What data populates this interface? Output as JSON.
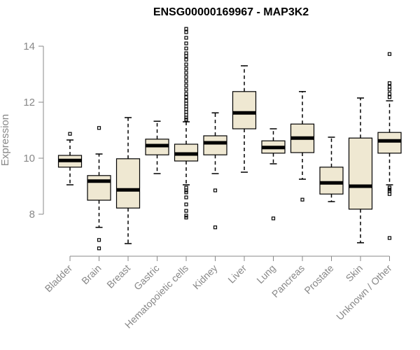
{
  "chart_data": {
    "type": "boxplot",
    "title": "ENSG00000169967 - MAP3K2",
    "xlabel": "",
    "ylabel": "Expression",
    "ylim": [
      6.5,
      14.6
    ],
    "yticks": [
      8,
      10,
      12,
      14
    ],
    "grid": false,
    "colors": {
      "box_fill": "#efe8d2",
      "axis": "#888888",
      "stroke": "#000000"
    },
    "categories": [
      "Bladder",
      "Brain",
      "Breast",
      "Gastric",
      "Hematopoietic cells",
      "Kidney",
      "Liver",
      "Lung",
      "Pancreas",
      "Prostate",
      "Skin",
      "Unknown / Other"
    ],
    "series": [
      {
        "name": "Bladder",
        "min": 9.05,
        "q1": 9.68,
        "median": 9.92,
        "q3": 10.1,
        "max": 10.65,
        "outliers": [
          10.87
        ]
      },
      {
        "name": "Brain",
        "min": 7.53,
        "q1": 8.5,
        "median": 9.18,
        "q3": 9.38,
        "max": 10.15,
        "outliers": [
          11.08,
          7.08,
          6.78
        ]
      },
      {
        "name": "Breast",
        "min": 6.95,
        "q1": 8.22,
        "median": 8.87,
        "q3": 9.98,
        "max": 11.45,
        "outliers": []
      },
      {
        "name": "Gastric",
        "min": 9.45,
        "q1": 10.12,
        "median": 10.45,
        "q3": 10.68,
        "max": 11.32,
        "outliers": []
      },
      {
        "name": "Hematopoietic cells",
        "min": 9.05,
        "q1": 9.9,
        "median": 10.15,
        "q3": 10.5,
        "max": 11.3,
        "outliers": [
          14.62,
          14.5,
          14.3,
          14.1,
          13.92,
          13.75,
          13.65,
          13.52,
          13.35,
          13.2,
          13.05,
          12.9,
          12.75,
          12.6,
          12.45,
          12.3,
          12.18,
          12.05,
          11.95,
          11.85,
          11.75,
          11.65,
          11.55,
          11.45,
          11.38,
          8.95,
          8.85,
          8.78,
          8.6,
          8.35,
          8.12,
          7.95,
          7.88
        ]
      },
      {
        "name": "Kidney",
        "min": 9.45,
        "q1": 10.12,
        "median": 10.55,
        "q3": 10.8,
        "max": 11.62,
        "outliers": [
          8.85,
          7.53
        ]
      },
      {
        "name": "Liver",
        "min": 9.5,
        "q1": 11.05,
        "median": 11.62,
        "q3": 12.38,
        "max": 13.3,
        "outliers": []
      },
      {
        "name": "Lung",
        "min": 9.8,
        "q1": 10.18,
        "median": 10.38,
        "q3": 10.62,
        "max": 11.05,
        "outliers": [
          7.85
        ]
      },
      {
        "name": "Pancreas",
        "min": 9.25,
        "q1": 10.2,
        "median": 10.72,
        "q3": 11.22,
        "max": 12.38,
        "outliers": [
          8.52
        ]
      },
      {
        "name": "Prostate",
        "min": 8.45,
        "q1": 8.72,
        "median": 9.12,
        "q3": 9.68,
        "max": 10.75,
        "outliers": []
      },
      {
        "name": "Skin",
        "min": 6.98,
        "q1": 8.18,
        "median": 9.0,
        "q3": 10.72,
        "max": 12.15,
        "outliers": []
      },
      {
        "name": "Unknown / Other",
        "min": 9.05,
        "q1": 10.18,
        "median": 10.62,
        "q3": 10.92,
        "max": 12.05,
        "outliers": [
          13.72,
          12.68,
          12.55,
          12.45,
          12.3,
          12.18,
          8.95,
          8.88,
          8.82,
          8.72,
          7.15
        ]
      }
    ]
  }
}
